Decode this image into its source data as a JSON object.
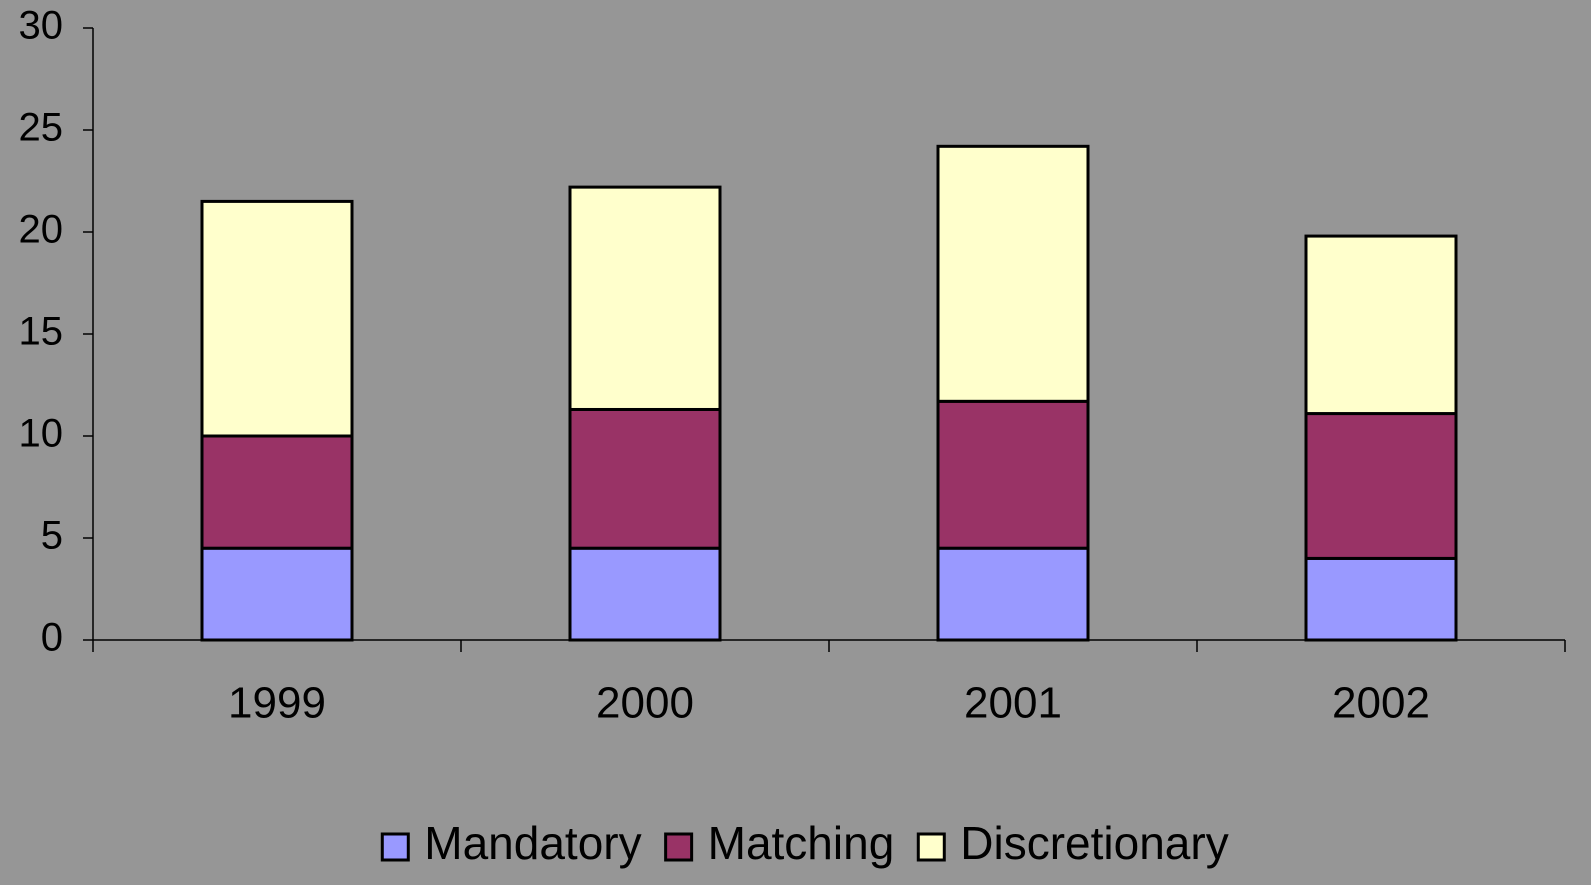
{
  "chart_data": {
    "type": "stacked_bar",
    "categories": [
      "1999",
      "2000",
      "2001",
      "2002"
    ],
    "series": [
      {
        "name": "Mandatory",
        "color": "#9999ff",
        "values": [
          4.5,
          4.5,
          4.5,
          4.0
        ]
      },
      {
        "name": "Matching",
        "color": "#993366",
        "values": [
          5.5,
          6.8,
          7.2,
          7.1
        ]
      },
      {
        "name": "Discretionary",
        "color": "#ffffcc",
        "values": [
          11.5,
          10.9,
          12.5,
          8.7
        ]
      }
    ],
    "ylim": [
      0,
      30
    ],
    "yticks": [
      0,
      5,
      10,
      15,
      20,
      25,
      30
    ],
    "grid": false,
    "legend": "bottom"
  }
}
